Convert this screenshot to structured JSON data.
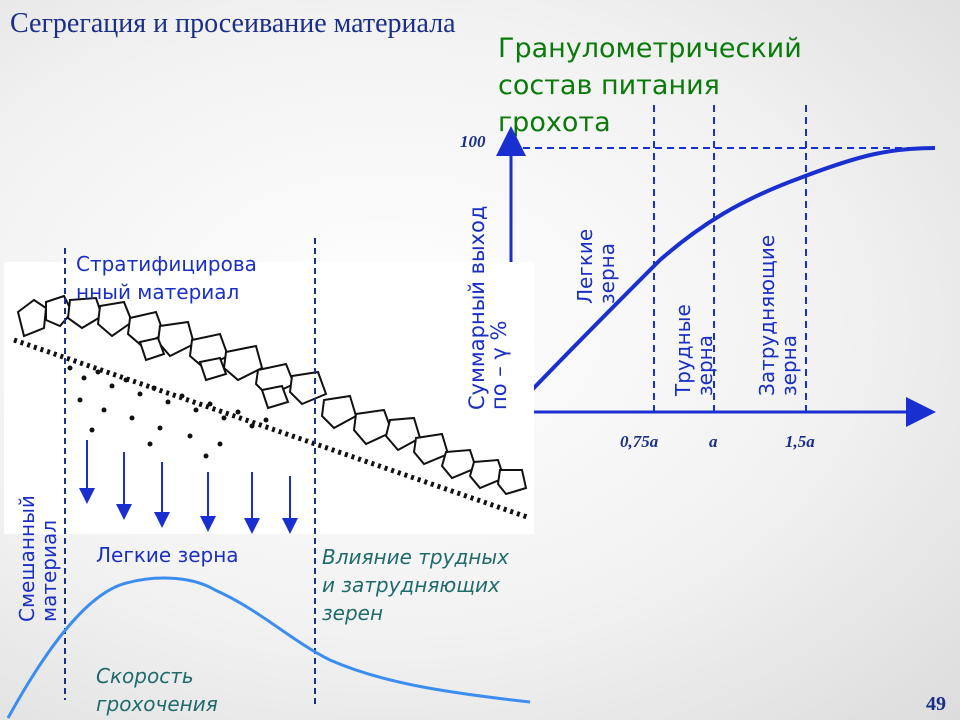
{
  "slide": {
    "title": "Сегрегация и просеивание материала",
    "page_number": "49"
  },
  "graph": {
    "title_lines": [
      "Гранулометрический",
      "состав питания",
      "грохота"
    ],
    "y_tick": "100",
    "y_label_lines": [
      "Суммарный выход",
      "по – γ %"
    ],
    "x_ticks": [
      "0,75a",
      "a",
      "1,5a"
    ],
    "zones": [
      {
        "lines": [
          "Легкие",
          "зерна"
        ]
      },
      {
        "lines": [
          "Трудные",
          "зерна"
        ]
      },
      {
        "lines": [
          "Затрудняющие",
          "зерна"
        ]
      }
    ]
  },
  "screen": {
    "stratified_lines": [
      "Стратифицирова",
      "нный материал"
    ],
    "mixed_lines": [
      "Смешанный",
      "материал"
    ],
    "light_grains": "Легкие зерна",
    "influence_lines": [
      "Влияние трудных",
      "и затрудняющих",
      "зерен"
    ],
    "speed_lines": [
      "Скорость",
      "грохочения"
    ]
  },
  "colors": {
    "curve": "#1a2fd0",
    "speed_curve": "#3b8ef0",
    "title_blue": "#1a2f8a",
    "graph_title_green": "#0a7a0a"
  }
}
